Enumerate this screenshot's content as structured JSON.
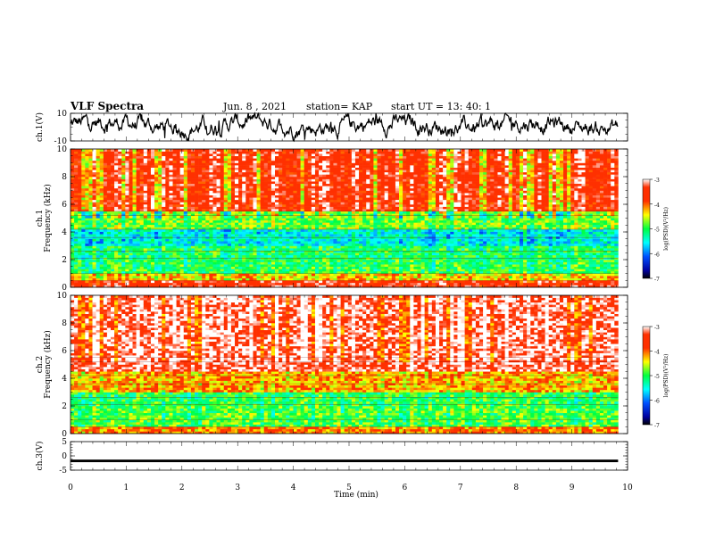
{
  "header": {
    "title": "VLF Spectra",
    "date": "Jun. 8 , 2021",
    "station": "station= KAP",
    "start": "start UT = 13: 40: 1"
  },
  "chart_data": [
    {
      "type": "line",
      "panel": "ch1-waveform",
      "ylabel": "ch.1(V)",
      "ylim": [
        -10,
        10
      ],
      "yticks": [
        "10",
        "-10"
      ],
      "xlim": [
        0,
        10
      ],
      "x_extent": [
        0,
        9.83
      ]
    },
    {
      "type": "heatmap",
      "panel": "ch1-spectrogram",
      "ylabel": "ch.1\nFrequency (kHz)",
      "ylim": [
        0,
        10
      ],
      "yticks": [
        "0",
        "2",
        "4",
        "6",
        "8",
        "10"
      ],
      "xlim": [
        0,
        10
      ],
      "x_extent": [
        0,
        9.83
      ],
      "bands_khz_logPSD": [
        [
          0,
          0.5,
          -3.5
        ],
        [
          0.5,
          1.0,
          -4.3
        ],
        [
          1.0,
          2.0,
          -5.0
        ],
        [
          2.0,
          3.0,
          -5.1
        ],
        [
          3.0,
          4.2,
          -5.5
        ],
        [
          4.2,
          5.5,
          -4.8
        ],
        [
          5.5,
          10.0,
          -3.6
        ]
      ],
      "colorbar": {
        "label": "log(PSD)(V²/Hz)",
        "ticks": [
          "-3",
          "-4",
          "-5",
          "-6",
          "-7"
        ],
        "range": [
          -7,
          -3
        ]
      }
    },
    {
      "type": "heatmap",
      "panel": "ch2-spectrogram",
      "ylabel": "ch.2\nFrequency (kHz)",
      "ylim": [
        0,
        10
      ],
      "yticks": [
        "0",
        "2",
        "4",
        "6",
        "8",
        "10"
      ],
      "xlim": [
        0,
        10
      ],
      "x_extent": [
        0,
        9.83
      ],
      "bands_khz_logPSD": [
        [
          0,
          0.5,
          -4.0
        ],
        [
          0.5,
          2.0,
          -4.9
        ],
        [
          2.0,
          3.0,
          -5.0
        ],
        [
          3.0,
          4.5,
          -4.2
        ],
        [
          4.5,
          10.0,
          -3.2
        ]
      ],
      "colorbar": {
        "label": "log(PSD)(V²/Hz)",
        "ticks": [
          "-3",
          "-4",
          "-5",
          "-6",
          "-7"
        ],
        "range": [
          -7,
          -3
        ]
      }
    },
    {
      "type": "line",
      "panel": "ch3-waveform",
      "ylabel": "ch.3(V)",
      "ylim": [
        -5,
        5
      ],
      "yticks": [
        "5",
        "0",
        "-5"
      ],
      "xlim": [
        0,
        10
      ],
      "x_extent": [
        0,
        9.83
      ],
      "level": [
        -2.2,
        -1.3
      ]
    }
  ],
  "xaxis": {
    "label": "Time (min)",
    "ticks": [
      "0",
      "1",
      "2",
      "3",
      "4",
      "5",
      "6",
      "7",
      "8",
      "9",
      "10"
    ]
  }
}
